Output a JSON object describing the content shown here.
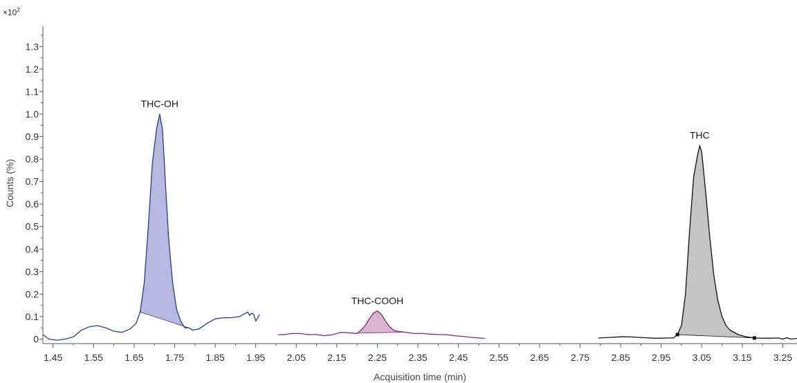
{
  "chart_data": {
    "type": "line",
    "title": "",
    "xlabel": "Acquisition time (min)",
    "ylabel": "Counts (%)",
    "y_multiplier": "×10",
    "y_multiplier_exp": "2",
    "xlim": [
      1.425,
      3.285
    ],
    "ylim": [
      -0.02,
      1.39
    ],
    "x_ticks": [
      "1.45",
      "1.55",
      "1.65",
      "1.75",
      "1.85",
      "1.95",
      "2.05",
      "2.15",
      "2.25",
      "2.35",
      "2.45",
      "2.55",
      "2.65",
      "2.75",
      "2.85",
      "2.95",
      "3.05",
      "3.15",
      "3.25"
    ],
    "y_ticks": [
      "0",
      "0.1",
      "0.2",
      "0.3",
      "0.4",
      "0.5",
      "0.6",
      "0.7",
      "0.8",
      "0.9",
      "1.0",
      "1.1",
      "1.2",
      "1.3"
    ],
    "grid": false,
    "legend": "none",
    "series": [
      {
        "name": "THC-OH",
        "color": "#2e3a8c",
        "fill": "#b7bade",
        "x": [
          1.425,
          1.44,
          1.46,
          1.48,
          1.5,
          1.52,
          1.54,
          1.56,
          1.58,
          1.6,
          1.62,
          1.64,
          1.655,
          1.665,
          1.675,
          1.685,
          1.695,
          1.705,
          1.713,
          1.72,
          1.727,
          1.735,
          1.745,
          1.755,
          1.765,
          1.775,
          1.785,
          1.795,
          1.81,
          1.83,
          1.85,
          1.87,
          1.89,
          1.91,
          1.92,
          1.925,
          1.93,
          1.935,
          1.94,
          1.945,
          1.95,
          1.96
        ],
        "y": [
          0.02,
          0.0,
          -0.005,
          0.0,
          0.01,
          0.04,
          0.055,
          0.06,
          0.05,
          0.035,
          0.03,
          0.045,
          0.07,
          0.12,
          0.25,
          0.5,
          0.78,
          0.93,
          1.0,
          0.93,
          0.7,
          0.45,
          0.25,
          0.13,
          0.08,
          0.05,
          0.05,
          0.04,
          0.045,
          0.07,
          0.09,
          0.095,
          0.095,
          0.1,
          0.11,
          0.115,
          0.12,
          0.105,
          0.115,
          0.11,
          0.08,
          0.11
        ],
        "peak": {
          "start": 1.665,
          "end": 1.785,
          "apex_x": 1.713,
          "apex_y": 1.0,
          "label": "THC-OH"
        }
      },
      {
        "name": "THC-COOH",
        "color": "#7a2d6e",
        "fill": "#d7b5d1",
        "x": [
          2.005,
          2.02,
          2.04,
          2.06,
          2.08,
          2.1,
          2.12,
          2.14,
          2.16,
          2.18,
          2.2,
          2.21,
          2.22,
          2.23,
          2.24,
          2.25,
          2.26,
          2.27,
          2.28,
          2.29,
          2.3,
          2.32,
          2.34,
          2.36,
          2.38,
          2.4,
          2.42,
          2.44,
          2.46,
          2.48,
          2.5,
          2.515
        ],
        "y": [
          0.02,
          0.02,
          0.025,
          0.025,
          0.02,
          0.02,
          0.015,
          0.02,
          0.03,
          0.028,
          0.025,
          0.04,
          0.06,
          0.09,
          0.115,
          0.125,
          0.11,
          0.08,
          0.055,
          0.04,
          0.035,
          0.03,
          0.025,
          0.025,
          0.022,
          0.02,
          0.02,
          0.015,
          0.012,
          0.008,
          0.005,
          0.003
        ],
        "peak": {
          "start": 2.195,
          "end": 2.315,
          "apex_x": 2.25,
          "apex_y": 0.125,
          "label": "THC-COOH"
        }
      },
      {
        "name": "THC",
        "color": "#111111",
        "fill": "#c4c4c4",
        "x": [
          2.795,
          2.81,
          2.83,
          2.85,
          2.87,
          2.89,
          2.91,
          2.93,
          2.95,
          2.97,
          2.98,
          2.99,
          3.0,
          3.01,
          3.02,
          3.03,
          3.04,
          3.045,
          3.05,
          3.06,
          3.07,
          3.08,
          3.09,
          3.1,
          3.11,
          3.12,
          3.14,
          3.16,
          3.18,
          3.2,
          3.22,
          3.24,
          3.25,
          3.26,
          3.27,
          3.285
        ],
        "y": [
          0.005,
          0.006,
          0.008,
          0.01,
          0.01,
          0.008,
          0.006,
          0.004,
          0.004,
          0.005,
          0.005,
          0.02,
          0.06,
          0.2,
          0.48,
          0.72,
          0.82,
          0.86,
          0.83,
          0.65,
          0.45,
          0.28,
          0.17,
          0.1,
          0.06,
          0.04,
          0.02,
          0.01,
          0.005,
          0.004,
          0.004,
          0.005,
          0.0,
          0.006,
          0.0,
          0.003
        ],
        "peak": {
          "start": 2.99,
          "end": 3.18,
          "apex_x": 3.045,
          "apex_y": 0.86,
          "label": "THC"
        }
      }
    ]
  }
}
